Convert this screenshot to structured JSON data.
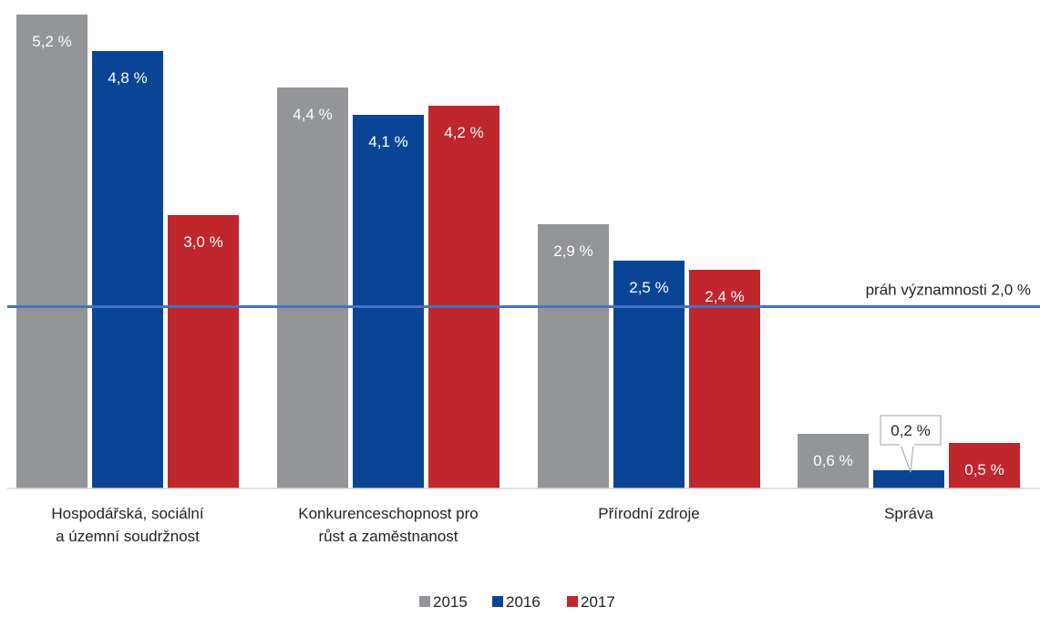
{
  "chart_data": {
    "type": "bar",
    "title": "",
    "xlabel": "",
    "ylabel": "",
    "ylim": [
      0,
      5.2
    ],
    "grid": false,
    "legend_position": "bottom",
    "categories": [
      [
        "Hospodářská, sociální",
        "a územní soudržnost"
      ],
      [
        "Konkurenceschopnost pro",
        "růst a zaměstnanost"
      ],
      [
        "Přírodní zdroje"
      ],
      [
        "Správa"
      ]
    ],
    "series": [
      {
        "name": "2015",
        "color": "#939598",
        "values": [
          5.2,
          4.4,
          2.9,
          0.6
        ],
        "labels": [
          "5,2 %",
          "4,4 %",
          "2,9 %",
          "0,6 %"
        ]
      },
      {
        "name": "2016",
        "color": "#0a4595",
        "values": [
          4.8,
          4.1,
          2.5,
          0.2
        ],
        "labels": [
          "4,8 %",
          "4,1 %",
          "2,5 %",
          "0,2 %"
        ]
      },
      {
        "name": "2017",
        "color": "#c0272d",
        "values": [
          3.0,
          4.2,
          2.4,
          0.5
        ],
        "labels": [
          "3,0 %",
          "4,2 %",
          "2,4 %",
          "0,5 %"
        ]
      }
    ],
    "threshold": {
      "value": 2.0,
      "label": "práh významnosti 2,0 %",
      "color": "#4472c4"
    }
  }
}
